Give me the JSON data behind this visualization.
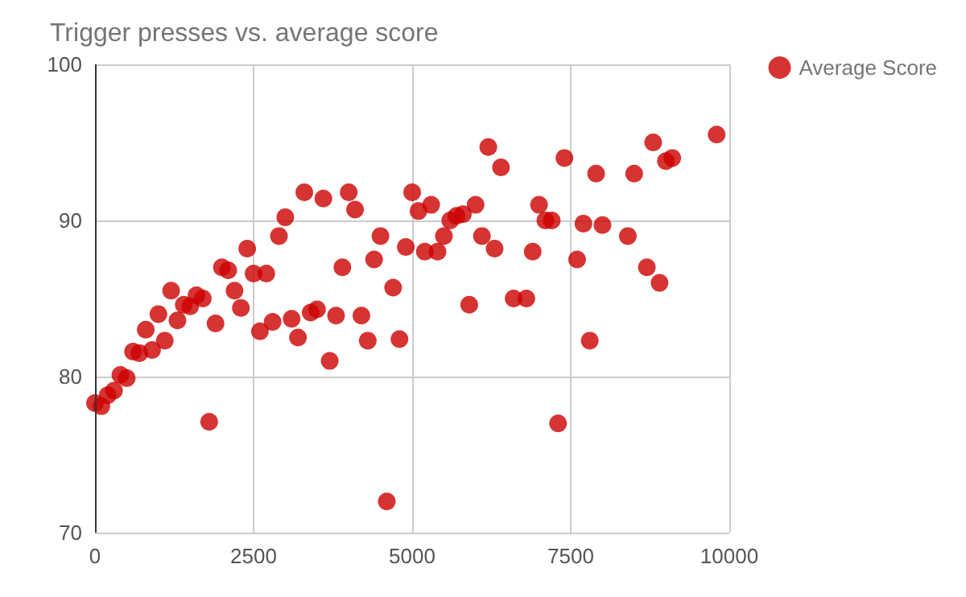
{
  "chart_data": {
    "type": "scatter",
    "title": "Trigger presses vs. average score",
    "x": [
      0,
      100,
      200,
      300,
      400,
      500,
      600,
      700,
      800,
      900,
      1000,
      1100,
      1200,
      1300,
      1400,
      1500,
      1600,
      1700,
      1800,
      1900,
      2000,
      2100,
      2200,
      2300,
      2400,
      2500,
      2600,
      2700,
      2800,
      2900,
      3000,
      3100,
      3200,
      3300,
      3400,
      3500,
      3600,
      3700,
      3800,
      3900,
      4000,
      4100,
      4200,
      4300,
      4400,
      4500,
      4600,
      4700,
      4800,
      4900,
      5000,
      5100,
      5200,
      5300,
      5400,
      5500,
      5600,
      5700,
      5800,
      5900,
      6000,
      6100,
      6200,
      6300,
      6400,
      6600,
      6800,
      6900,
      7000,
      7100,
      7200,
      7300,
      7400,
      7600,
      7700,
      7800,
      7900,
      8000,
      8400,
      8500,
      8700,
      8800,
      8900,
      9000,
      9100,
      9800
    ],
    "series": [
      {
        "name": "Average Score",
        "color": "#cc0000",
        "values": [
          78.3,
          78.1,
          78.8,
          79.1,
          80.1,
          79.9,
          81.6,
          81.5,
          83,
          81.7,
          84,
          82.3,
          85.5,
          83.6,
          84.6,
          84.5,
          85.2,
          85,
          77.1,
          83.4,
          87,
          86.8,
          85.5,
          84.4,
          88.2,
          86.6,
          82.9,
          86.6,
          83.5,
          89,
          90.2,
          83.7,
          82.5,
          91.8,
          84.1,
          84.3,
          91.4,
          81,
          83.9,
          87,
          91.8,
          90.7,
          83.9,
          82.3,
          87.5,
          89,
          72,
          85.7,
          82.4,
          88.3,
          91.8,
          90.6,
          88,
          91,
          88,
          89,
          90,
          90.3,
          90.4,
          84.6,
          91,
          89,
          94.7,
          88.2,
          93.4,
          85,
          85,
          88,
          91,
          90,
          90,
          77,
          94,
          87.5,
          89.8,
          82.3,
          93,
          89.7,
          89,
          93,
          87,
          95,
          86,
          93.8,
          94,
          95.5
        ]
      }
    ],
    "xlim": [
      0,
      10000
    ],
    "xticks": [
      0,
      2500,
      5000,
      7500,
      10000
    ],
    "ylim": [
      70,
      100
    ],
    "yticks": [
      70,
      80,
      90,
      100
    ],
    "grid": true,
    "legend": "top right",
    "marker": "circle"
  }
}
